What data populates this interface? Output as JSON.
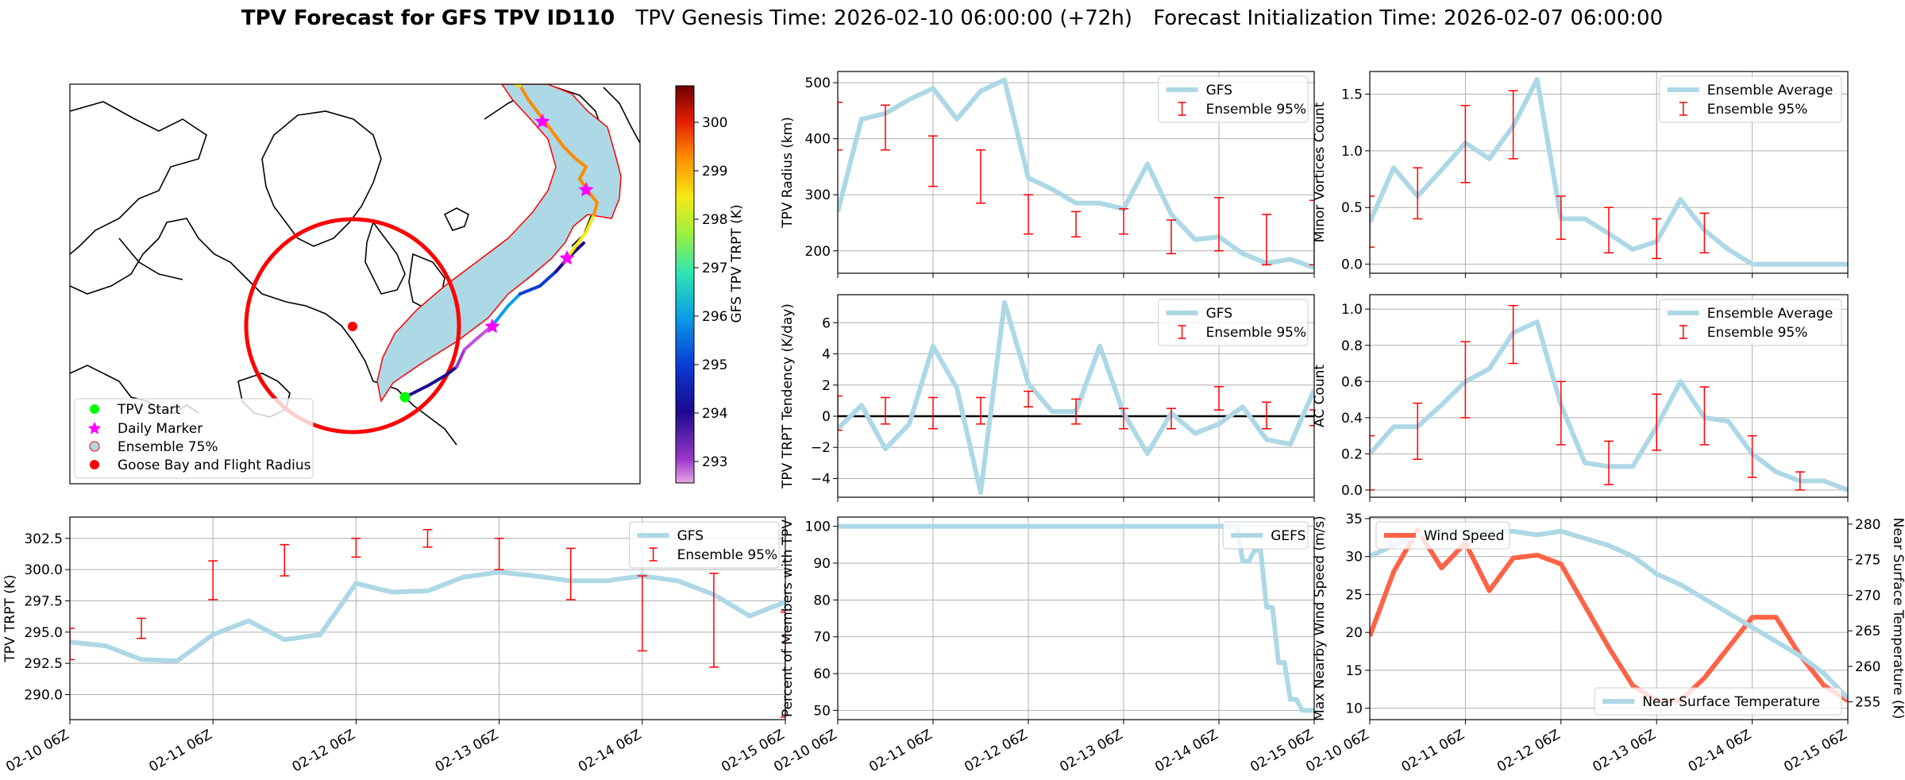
{
  "title": {
    "bold": "TPV Forecast for GFS TPV ID110",
    "genesis": "TPV Genesis Time: 2026-02-10 06:00:00 (+72h)",
    "init": "Forecast Initialization Time: 2026-02-07 06:00:00"
  },
  "colors": {
    "gfs_line": "#add8e6",
    "error_bar": "#ff0000",
    "wind_line": "#ff6347",
    "temp_axis": "#4169e1",
    "wind_axis": "#ff6347",
    "zero_line": "#000000",
    "ensemble_fill": "#add8e6",
    "flight_radius": "#ff0000",
    "start_marker": "#00ff00",
    "daily_marker": "#ff00ff"
  },
  "x_ticks": [
    "02-10 06Z",
    "02-11 06Z",
    "02-12 06Z",
    "02-13 06Z",
    "02-14 06Z",
    "02-15 06Z"
  ],
  "map": {
    "colorbar_label": "GFS TPV TRPT (K)",
    "colorbar_ticks": [
      "300",
      "299",
      "298",
      "297",
      "296",
      "295",
      "294",
      "293"
    ],
    "legend": [
      {
        "label": "TPV Start",
        "icon": "green-dot"
      },
      {
        "label": "Daily Marker",
        "icon": "magenta-star"
      },
      {
        "label": "Ensemble 75%",
        "icon": "lightblue-circle"
      },
      {
        "label": "Goose Bay and Flight Radius",
        "icon": "red-dot"
      }
    ]
  },
  "chart_data": [
    {
      "id": "trpt",
      "type": "line",
      "ylabel": "TPV TRPT (K)",
      "ylim": [
        288,
        304.2
      ],
      "yticks": [
        290.0,
        292.5,
        295.0,
        297.5,
        300.0,
        302.5
      ],
      "ytick_labels": [
        "290.0",
        "292.5",
        "295.0",
        "297.5",
        "300.0",
        "302.5"
      ],
      "legend": [
        "GFS",
        "Ensemble 95%"
      ],
      "legend_pos": "top-right",
      "grid": true,
      "series": [
        {
          "name": "GFS",
          "values": [
            294.2,
            293.9,
            292.8,
            292.7,
            294.8,
            295.9,
            294.4,
            294.8,
            298.9,
            298.2,
            298.3,
            299.4,
            299.8,
            299.5,
            299.1,
            299.1,
            299.5,
            299.1,
            298.0,
            296.3,
            297.4
          ]
        }
      ],
      "error_bars": [
        [
          0,
          292.8,
          295.3
        ],
        [
          2.5,
          294.5,
          296.1
        ],
        [
          5,
          297.6,
          300.7
        ],
        [
          7.5,
          299.5,
          302.0
        ],
        [
          10,
          301.0,
          302.5
        ],
        [
          12.5,
          301.8,
          303.2
        ],
        [
          15,
          300.0,
          302.5
        ],
        [
          17.5,
          297.6,
          301.7
        ],
        [
          20,
          293.5,
          299.5
        ],
        [
          22.5,
          292.2,
          299.7
        ],
        [
          25,
          288.2,
          296.6
        ]
      ]
    },
    {
      "id": "radius",
      "type": "line",
      "ylabel": "TPV Radius (km)",
      "ylim": [
        160,
        520
      ],
      "yticks": [
        200,
        300,
        400,
        500
      ],
      "ytick_labels": [
        "200",
        "300",
        "400",
        "500"
      ],
      "legend": [
        "GFS",
        "Ensemble 95%"
      ],
      "legend_pos": "top-right",
      "grid": true,
      "series": [
        {
          "name": "GFS",
          "values": [
            270,
            435,
            445,
            470,
            490,
            435,
            485,
            505,
            330,
            310,
            285,
            285,
            275,
            355,
            265,
            220,
            225,
            195,
            178,
            185,
            170
          ]
        }
      ],
      "error_bars": [
        [
          0,
          380,
          465
        ],
        [
          2.5,
          380,
          460
        ],
        [
          5,
          315,
          405
        ],
        [
          7.5,
          285,
          380
        ],
        [
          10,
          230,
          300
        ],
        [
          12.5,
          225,
          270
        ],
        [
          15,
          230,
          275
        ],
        [
          17.5,
          195,
          255
        ],
        [
          20,
          200,
          295
        ],
        [
          22.5,
          175,
          265
        ],
        [
          25,
          175,
          290
        ]
      ]
    },
    {
      "id": "tendency",
      "type": "line",
      "ylabel": "TPV TRPT Tendency (K/day)",
      "ylim": [
        -5.2,
        7.8
      ],
      "yticks": [
        -4,
        -2,
        0,
        2,
        4,
        6
      ],
      "ytick_labels": [
        "−4",
        "−2",
        "0",
        "2",
        "4",
        "6"
      ],
      "legend": [
        "GFS",
        "Ensemble 95%"
      ],
      "legend_pos": "top-right",
      "grid": true,
      "zero_line": true,
      "series": [
        {
          "name": "GFS",
          "values": [
            -0.8,
            0.7,
            -2.1,
            -0.5,
            4.5,
            1.8,
            -4.9,
            7.3,
            2.1,
            0.3,
            0.3,
            4.5,
            0.2,
            -2.4,
            0.2,
            -1.1,
            -0.5,
            0.6,
            -1.5,
            -1.8,
            1.7
          ]
        }
      ],
      "error_bars": [
        [
          0,
          -0.9,
          1.3
        ],
        [
          2.5,
          -0.5,
          1.2
        ],
        [
          5,
          -0.8,
          1.2
        ],
        [
          7.5,
          -0.5,
          1.2
        ],
        [
          10,
          0.6,
          1.6
        ],
        [
          12.5,
          -0.5,
          1.1
        ],
        [
          15,
          -0.8,
          0.5
        ],
        [
          17.5,
          -0.8,
          0.5
        ],
        [
          20,
          0.4,
          1.9
        ],
        [
          22.5,
          -0.8,
          0.9
        ],
        [
          25,
          -0.6,
          0.4
        ],
        [
          27.5,
          -1.0,
          0.0
        ],
        [
          30,
          -0.8,
          1.4
        ],
        [
          32.5,
          -0.5,
          1.8
        ],
        [
          35,
          -0.7,
          1.8
        ],
        [
          37.5,
          -0.7,
          1.9
        ],
        [
          40,
          -1.0,
          0.9
        ],
        [
          42.5,
          -1.6,
          1.6
        ],
        [
          45,
          -2.4,
          2.0
        ],
        [
          47.5,
          -0.8,
          2.0
        ]
      ]
    },
    {
      "id": "percent",
      "type": "line",
      "ylabel": "Percent of Members with TPV",
      "ylim": [
        47.5,
        102.5
      ],
      "yticks": [
        50,
        60,
        70,
        80,
        90,
        100
      ],
      "ytick_labels": [
        "50",
        "60",
        "70",
        "80",
        "90",
        "100"
      ],
      "legend": [
        "GEFS"
      ],
      "legend_pos": "top-right",
      "grid": true,
      "series": [
        {
          "name": "GEFS",
          "values": [
            100,
            100,
            100,
            100,
            100,
            100,
            100,
            100,
            100,
            100,
            100,
            100,
            100,
            100,
            100,
            100,
            100,
            100,
            100,
            100,
            100,
            100,
            100,
            100,
            100,
            100,
            100,
            100,
            100,
            100,
            100,
            100,
            100,
            100,
            100,
            100,
            100,
            100,
            100,
            100,
            100,
            100,
            100,
            100,
            100,
            100,
            100,
            100,
            100,
            100,
            100,
            100,
            100,
            100,
            100,
            100,
            100,
            100,
            100,
            100,
            100,
            100,
            100,
            100,
            100,
            100,
            100,
            100,
            90.5,
            90.5,
            93.5,
            93.5,
            78,
            78,
            63,
            63,
            53,
            53,
            50,
            50,
            50
          ]
        }
      ]
    },
    {
      "id": "minor",
      "type": "line",
      "ylabel": "Minor Vortices Count",
      "ylim": [
        -0.08,
        1.7
      ],
      "yticks": [
        0.0,
        0.5,
        1.0,
        1.5
      ],
      "ytick_labels": [
        "0.0",
        "0.5",
        "1.0",
        "1.5"
      ],
      "legend": [
        "Ensemble Average",
        "Ensemble 95%"
      ],
      "legend_pos": "top-right",
      "grid": true,
      "series": [
        {
          "name": "Ensemble Average",
          "values": [
            0.37,
            0.85,
            0.6,
            0.83,
            1.07,
            0.93,
            1.22,
            1.63,
            0.4,
            0.4,
            0.27,
            0.13,
            0.2,
            0.57,
            0.3,
            0.13,
            0.0,
            0.0,
            0.0,
            0.0,
            0.0
          ]
        }
      ],
      "error_bars": [
        [
          0,
          0.15,
          0.6
        ],
        [
          2.5,
          0.4,
          0.85
        ],
        [
          5,
          0.72,
          1.4
        ],
        [
          7.5,
          0.93,
          1.53
        ],
        [
          10,
          0.22,
          0.6
        ],
        [
          12.5,
          0.1,
          0.5
        ],
        [
          15,
          0.05,
          0.4
        ],
        [
          17.5,
          0.1,
          0.45
        ]
      ]
    },
    {
      "id": "ac",
      "type": "line",
      "ylabel": "AC Count",
      "ylim": [
        -0.04,
        1.08
      ],
      "yticks": [
        0.0,
        0.2,
        0.4,
        0.6,
        0.8,
        1.0
      ],
      "ytick_labels": [
        "0.0",
        "0.2",
        "0.4",
        "0.6",
        "0.8",
        "1.0"
      ],
      "legend": [
        "Ensemble Average",
        "Ensemble 95%"
      ],
      "legend_pos": "top-right",
      "grid": true,
      "series": [
        {
          "name": "Ensemble Average",
          "values": [
            0.2,
            0.35,
            0.35,
            0.47,
            0.6,
            0.67,
            0.87,
            0.93,
            0.47,
            0.15,
            0.13,
            0.13,
            0.35,
            0.6,
            0.4,
            0.38,
            0.2,
            0.1,
            0.05,
            0.05,
            0.0
          ]
        }
      ],
      "error_bars": [
        [
          0,
          0.0,
          0.3
        ],
        [
          2.5,
          0.17,
          0.48
        ],
        [
          5,
          0.4,
          0.82
        ],
        [
          7.5,
          0.7,
          1.02
        ],
        [
          10,
          0.25,
          0.6
        ],
        [
          12.5,
          0.03,
          0.27
        ],
        [
          15,
          0.22,
          0.53
        ],
        [
          17.5,
          0.25,
          0.57
        ],
        [
          20,
          0.07,
          0.3
        ],
        [
          22.5,
          0.0,
          0.1
        ]
      ]
    },
    {
      "id": "wind_temp",
      "type": "line",
      "ylabel": "Max Nearby Wind Speed (m/s)",
      "ylabel_right": "Near Surface Temperature (K)",
      "ylim": [
        8.5,
        35.2
      ],
      "ylim_right": [
        252.5,
        281
      ],
      "yticks": [
        10,
        15,
        20,
        25,
        30,
        35
      ],
      "ytick_labels": [
        "10",
        "15",
        "20",
        "25",
        "30",
        "35"
      ],
      "yticks_right": [
        255,
        260,
        265,
        270,
        275,
        280
      ],
      "ytick_labels_right": [
        "255",
        "260",
        "265",
        "270",
        "275",
        "280"
      ],
      "legend": [
        "Wind Speed",
        "Near Surface Temperature"
      ],
      "legend_pos": "top-left / bottom-right",
      "grid": true,
      "series": [
        {
          "name": "Wind Speed",
          "axis": "left",
          "values": [
            19.5,
            28,
            33.5,
            28.5,
            31.8,
            25.5,
            29.8,
            30.2,
            29,
            23.5,
            18,
            13,
            11,
            11,
            14,
            18,
            22,
            22,
            17,
            13,
            11
          ]
        },
        {
          "name": "Near Surface Temperature",
          "axis": "right",
          "values": [
            275.5,
            277,
            278.5,
            279,
            279,
            279,
            279,
            278.5,
            279,
            278,
            277,
            275.5,
            273,
            271.5,
            269.5,
            267.5,
            265.5,
            263.5,
            261.5,
            259,
            255.5
          ]
        }
      ]
    }
  ]
}
